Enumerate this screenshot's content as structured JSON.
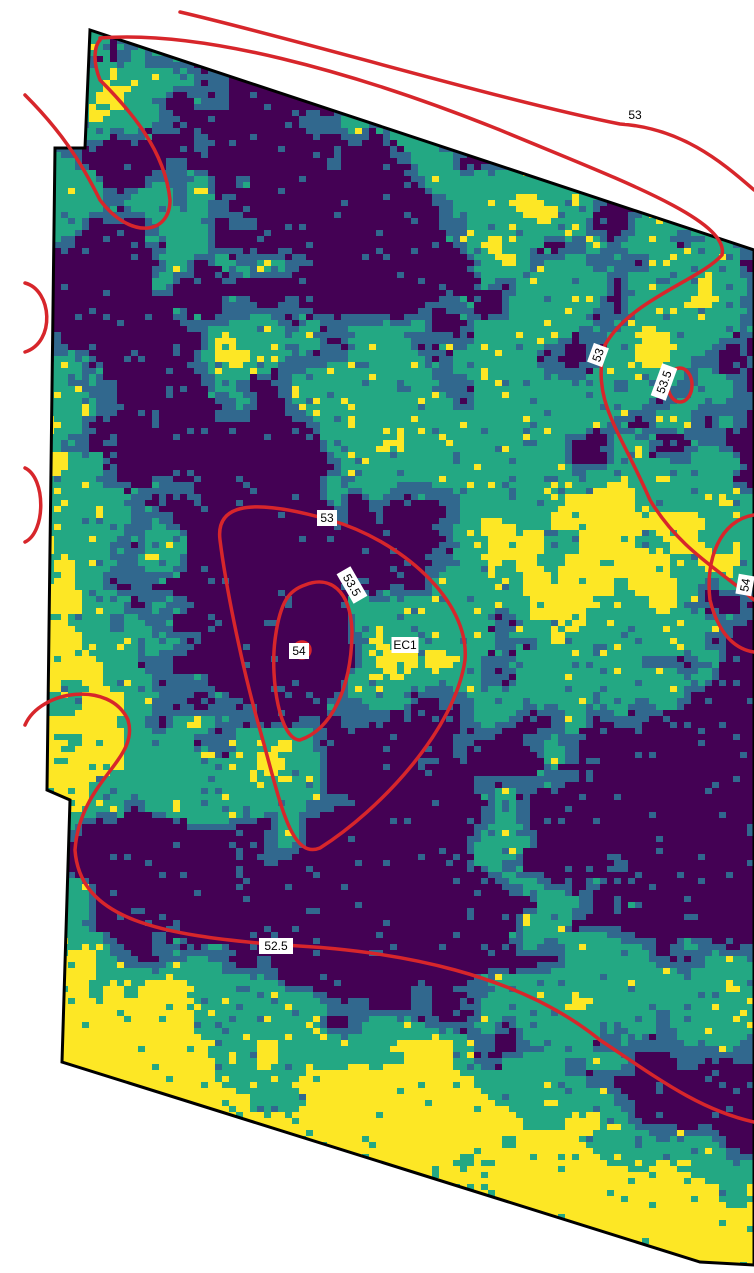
{
  "contours": {
    "labels": [
      "53",
      "53",
      "53.5",
      "53",
      "53.5",
      "54",
      "54",
      "52.5"
    ]
  },
  "point_label": "EC1"
}
